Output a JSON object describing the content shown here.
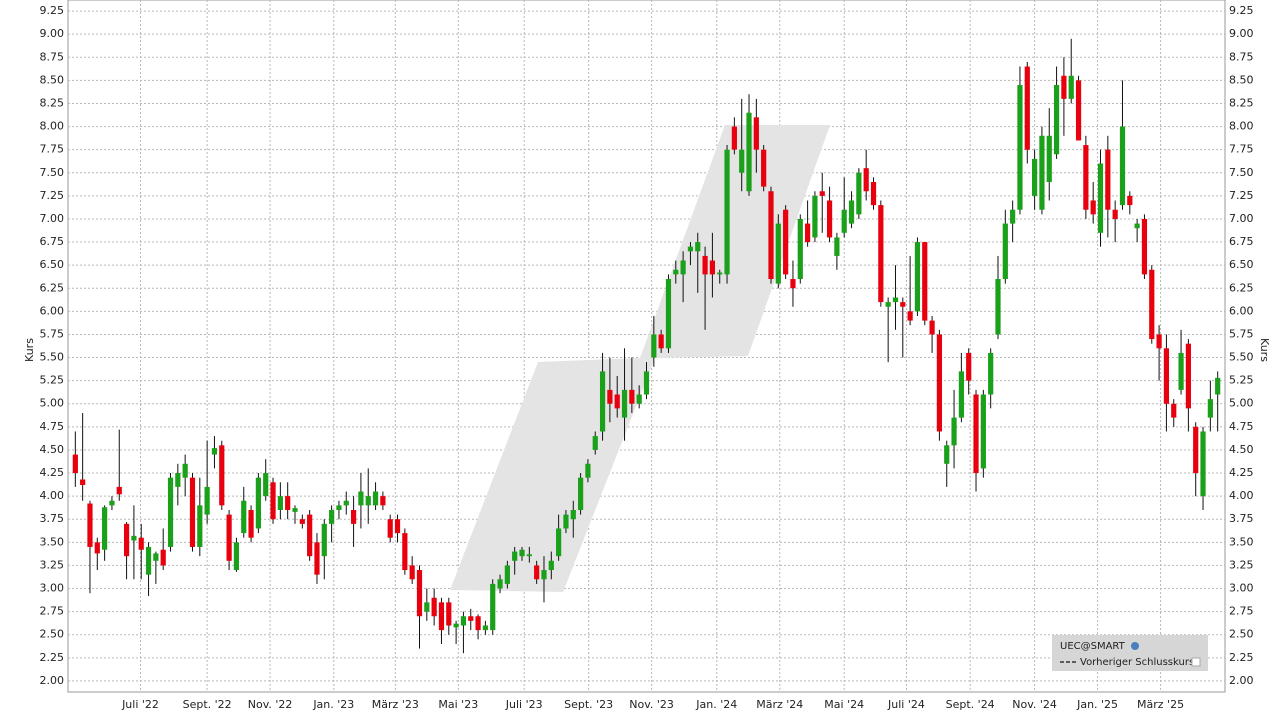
{
  "chart_data": {
    "type": "candlestick",
    "y_label": "Kurs",
    "up_color": "#1aa01a",
    "down_color": "#e8000e",
    "grid": true,
    "xlim": [
      -1,
      157
    ],
    "ylim": [
      1.88,
      9.37
    ],
    "xticks": [
      {
        "value": 8.9,
        "label": "Juli '22"
      },
      {
        "value": 18,
        "label": "Sept. '22"
      },
      {
        "value": 26.6,
        "label": "Nov. '22"
      },
      {
        "value": 35.3,
        "label": "Jan. '23"
      },
      {
        "value": 43.7,
        "label": "März '23"
      },
      {
        "value": 52.3,
        "label": "Mai '23"
      },
      {
        "value": 61.3,
        "label": "Juli '23"
      },
      {
        "value": 70.1,
        "label": "Sept. '23"
      },
      {
        "value": 78.7,
        "label": "Nov. '23"
      },
      {
        "value": 87.6,
        "label": "Jan. '24"
      },
      {
        "value": 96.2,
        "label": "März '24"
      },
      {
        "value": 105,
        "label": "Mai '24"
      },
      {
        "value": 113.5,
        "label": "Juli '24"
      },
      {
        "value": 122.2,
        "label": "Sept. '24"
      },
      {
        "value": 131,
        "label": "Nov. '24"
      },
      {
        "value": 139.6,
        "label": "Jan. '25"
      },
      {
        "value": 148.2,
        "label": "März '25"
      }
    ],
    "yticks": [
      {
        "value": 2,
        "label": "2.00"
      },
      {
        "value": 2.25,
        "label": "2.25"
      },
      {
        "value": 2.5,
        "label": "2.50"
      },
      {
        "value": 2.75,
        "label": "2.75"
      },
      {
        "value": 3,
        "label": "3.00"
      },
      {
        "value": 3.25,
        "label": "3.25"
      },
      {
        "value": 3.5,
        "label": "3.50"
      },
      {
        "value": 3.75,
        "label": "3.75"
      },
      {
        "value": 4,
        "label": "4.00"
      },
      {
        "value": 4.25,
        "label": "4.25"
      },
      {
        "value": 4.5,
        "label": "4.50"
      },
      {
        "value": 4.75,
        "label": "4.75"
      },
      {
        "value": 5,
        "label": "5.00"
      },
      {
        "value": 5.25,
        "label": "5.25"
      },
      {
        "value": 5.5,
        "label": "5.50"
      },
      {
        "value": 5.75,
        "label": "5.75"
      },
      {
        "value": 6,
        "label": "6.00"
      },
      {
        "value": 6.25,
        "label": "6.25"
      },
      {
        "value": 6.5,
        "label": "6.50"
      },
      {
        "value": 6.75,
        "label": "6.75"
      },
      {
        "value": 7,
        "label": "7.00"
      },
      {
        "value": 7.25,
        "label": "7.25"
      },
      {
        "value": 7.5,
        "label": "7.50"
      },
      {
        "value": 7.75,
        "label": "7.75"
      },
      {
        "value": 8,
        "label": "8.00"
      },
      {
        "value": 8.25,
        "label": "8.25"
      },
      {
        "value": 8.5,
        "label": "8.50"
      },
      {
        "value": 8.75,
        "label": "8.75"
      },
      {
        "value": 9,
        "label": "9.00"
      },
      {
        "value": 9.25,
        "label": "9.25"
      }
    ],
    "legend": [
      "UEC@SMART",
      "Vorheriger Schlusskurs"
    ],
    "open": [
      4.45,
      4.18,
      3.92,
      3.5,
      3.42,
      3.9,
      4.1,
      3.7,
      3.52,
      3.55,
      3.15,
      3.3,
      3.42,
      3.45,
      4.1,
      4.2,
      4.2,
      3.45,
      3.8,
      4.45,
      4.55,
      3.8,
      3.2,
      3.6,
      3.85,
      3.65,
      4.0,
      4.15,
      3.85,
      4.0,
      3.83,
      3.75,
      3.8,
      3.5,
      3.35,
      3.7,
      3.85,
      3.9,
      3.85,
      3.9,
      3.9,
      3.9,
      4.0,
      3.75,
      3.75,
      3.6,
      3.25,
      3.2,
      2.75,
      2.9,
      2.85,
      2.85,
      2.58,
      2.6,
      2.7,
      2.7,
      2.55,
      2.55,
      3.0,
      3.05,
      3.3,
      3.35,
      3.35,
      3.25,
      3.1,
      3.2,
      3.35,
      3.65,
      3.75,
      3.85,
      4.2,
      4.5,
      4.7,
      5.15,
      5.1,
      4.85,
      5.15,
      5.0,
      5.1,
      5.5,
      5.75,
      5.6,
      6.4,
      6.4,
      6.65,
      6.65,
      6.6,
      6.55,
      6.4,
      6.4,
      8.0,
      7.5,
      7.3,
      8.1,
      7.75,
      7.3,
      6.3,
      7.1,
      6.35,
      6.35,
      6.95,
      6.8,
      7.3,
      7.2,
      6.6,
      6.85,
      6.95,
      7.05,
      7.55,
      7.4,
      7.15,
      6.05,
      6.1,
      6.1,
      6.0,
      6.0,
      6.75,
      5.9,
      5.75,
      4.35,
      4.55,
      4.85,
      5.55,
      5.1,
      4.3,
      5.1,
      5.75,
      6.35,
      6.95,
      7.1,
      8.65,
      7.25,
      7.1,
      7.4,
      7.7,
      8.55,
      8.3,
      8.5,
      7.8,
      7.2,
      6.85,
      7.75,
      7.1,
      7.15,
      7.25,
      6.9,
      7.0,
      6.45,
      5.75,
      5.6,
      5.0,
      5.15,
      5.65,
      4.75,
      4.0,
      4.85,
      5.1
    ],
    "high": [
      4.7,
      4.9,
      3.95,
      3.55,
      3.9,
      4.0,
      4.72,
      3.72,
      3.9,
      3.7,
      3.5,
      3.4,
      3.65,
      4.25,
      4.35,
      4.45,
      4.25,
      4.2,
      4.6,
      4.65,
      4.6,
      3.85,
      3.55,
      4.1,
      3.9,
      4.25,
      4.4,
      4.2,
      4.15,
      4.15,
      3.9,
      3.8,
      3.85,
      3.6,
      3.75,
      3.9,
      3.95,
      4.05,
      4.0,
      4.25,
      4.3,
      4.15,
      4.05,
      3.8,
      3.8,
      3.65,
      3.35,
      3.25,
      3.0,
      3.0,
      2.9,
      2.9,
      2.65,
      2.75,
      2.78,
      2.72,
      2.65,
      3.1,
      3.15,
      3.3,
      3.45,
      3.45,
      3.45,
      3.3,
      3.35,
      3.4,
      3.8,
      3.85,
      3.95,
      4.25,
      4.4,
      4.7,
      5.55,
      5.5,
      5.3,
      5.6,
      5.5,
      5.2,
      5.45,
      5.95,
      5.8,
      6.4,
      6.55,
      6.65,
      6.75,
      6.85,
      6.7,
      6.85,
      6.45,
      7.8,
      8.1,
      8.3,
      8.35,
      8.3,
      7.8,
      7.35,
      7.05,
      7.15,
      6.55,
      7.05,
      7.2,
      7.3,
      7.5,
      7.35,
      6.85,
      7.45,
      7.3,
      7.55,
      7.75,
      7.45,
      7.2,
      6.15,
      6.5,
      6.15,
      6.6,
      6.8,
      6.75,
      5.95,
      5.8,
      4.6,
      5.15,
      5.55,
      5.6,
      5.15,
      5.15,
      5.6,
      6.6,
      7.1,
      7.2,
      8.65,
      8.7,
      7.75,
      8.0,
      8.2,
      8.65,
      8.75,
      8.95,
      8.55,
      7.9,
      7.4,
      7.75,
      7.9,
      7.2,
      8.5,
      7.3,
      7.0,
      7.05,
      6.5,
      5.85,
      5.75,
      5.05,
      5.8,
      5.7,
      4.8,
      4.75,
      5.25,
      5.35
    ],
    "low": [
      4.1,
      3.95,
      2.95,
      3.2,
      3.3,
      3.85,
      3.95,
      3.1,
      3.1,
      3.1,
      2.92,
      3.05,
      3.2,
      3.4,
      3.9,
      4.0,
      3.4,
      3.35,
      3.7,
      4.3,
      3.85,
      3.2,
      3.18,
      3.55,
      3.5,
      3.6,
      3.95,
      3.7,
      3.75,
      3.75,
      3.7,
      3.65,
      3.3,
      3.05,
      3.1,
      3.5,
      3.75,
      3.8,
      3.45,
      3.65,
      3.7,
      3.85,
      3.85,
      3.5,
      3.5,
      3.15,
      3.05,
      2.35,
      2.65,
      2.6,
      2.4,
      2.5,
      2.4,
      2.3,
      2.55,
      2.45,
      2.5,
      2.5,
      2.95,
      3.0,
      3.15,
      3.3,
      3.28,
      3.05,
      2.85,
      3.1,
      3.3,
      3.6,
      3.55,
      3.8,
      4.15,
      4.45,
      4.6,
      4.8,
      4.85,
      4.6,
      4.9,
      4.95,
      5.05,
      5.4,
      5.55,
      5.55,
      6.3,
      6.1,
      6.5,
      6.2,
      5.8,
      6.15,
      6.3,
      6.3,
      7.7,
      7.3,
      7.25,
      7.5,
      7.3,
      6.3,
      6.25,
      6.35,
      6.05,
      6.3,
      6.7,
      6.75,
      6.85,
      6.75,
      6.45,
      6.8,
      6.9,
      7.0,
      7.2,
      7.1,
      6.05,
      5.45,
      5.8,
      5.5,
      5.85,
      5.95,
      5.85,
      5.55,
      4.6,
      4.1,
      4.3,
      4.8,
      5.1,
      4.05,
      4.2,
      4.95,
      5.7,
      6.3,
      6.75,
      7.05,
      7.6,
      7.1,
      7.05,
      7.2,
      7.65,
      7.9,
      8.25,
      7.85,
      7.0,
      6.95,
      6.7,
      6.8,
      6.75,
      7.1,
      7.05,
      6.75,
      6.35,
      5.65,
      5.25,
      4.7,
      4.75,
      5.1,
      4.7,
      4.0,
      3.85,
      4.7,
      4.7
    ],
    "close": [
      4.25,
      4.12,
      3.45,
      3.38,
      3.88,
      3.95,
      4.02,
      3.35,
      3.57,
      3.42,
      3.45,
      3.38,
      3.25,
      4.2,
      4.25,
      4.35,
      3.45,
      3.9,
      4.1,
      4.52,
      3.9,
      3.3,
      3.5,
      3.95,
      3.55,
      4.2,
      4.25,
      3.75,
      4.0,
      3.85,
      3.87,
      3.7,
      3.35,
      3.15,
      3.7,
      3.85,
      3.9,
      3.95,
      3.7,
      4.05,
      4.0,
      4.05,
      3.9,
      3.55,
      3.6,
      3.2,
      3.1,
      2.7,
      2.85,
      2.7,
      2.55,
      2.6,
      2.62,
      2.7,
      2.65,
      2.55,
      2.6,
      3.05,
      3.1,
      3.25,
      3.4,
      3.42,
      3.37,
      3.1,
      3.2,
      3.3,
      3.65,
      3.8,
      3.85,
      4.2,
      4.35,
      4.65,
      5.35,
      5.0,
      4.95,
      5.15,
      5.0,
      5.1,
      5.35,
      5.75,
      5.6,
      6.35,
      6.45,
      6.55,
      6.7,
      6.75,
      6.4,
      6.4,
      6.42,
      7.75,
      7.75,
      7.75,
      8.15,
      7.75,
      7.35,
      6.35,
      6.95,
      6.4,
      6.25,
      7.0,
      6.75,
      7.25,
      7.25,
      6.8,
      6.8,
      7.1,
      7.2,
      7.5,
      7.3,
      7.15,
      6.1,
      6.1,
      6.15,
      6.05,
      5.9,
      6.75,
      5.9,
      5.75,
      4.7,
      4.55,
      4.85,
      5.35,
      5.25,
      4.25,
      5.1,
      5.55,
      6.35,
      6.95,
      7.1,
      8.45,
      7.75,
      7.65,
      7.9,
      7.9,
      8.45,
      8.3,
      8.55,
      7.85,
      7.1,
      7.05,
      7.6,
      7.1,
      7.0,
      8.0,
      7.15,
      6.95,
      6.4,
      5.7,
      5.6,
      5.0,
      4.85,
      5.55,
      4.95,
      4.25,
      4.7,
      5.05,
      5.28
    ]
  }
}
